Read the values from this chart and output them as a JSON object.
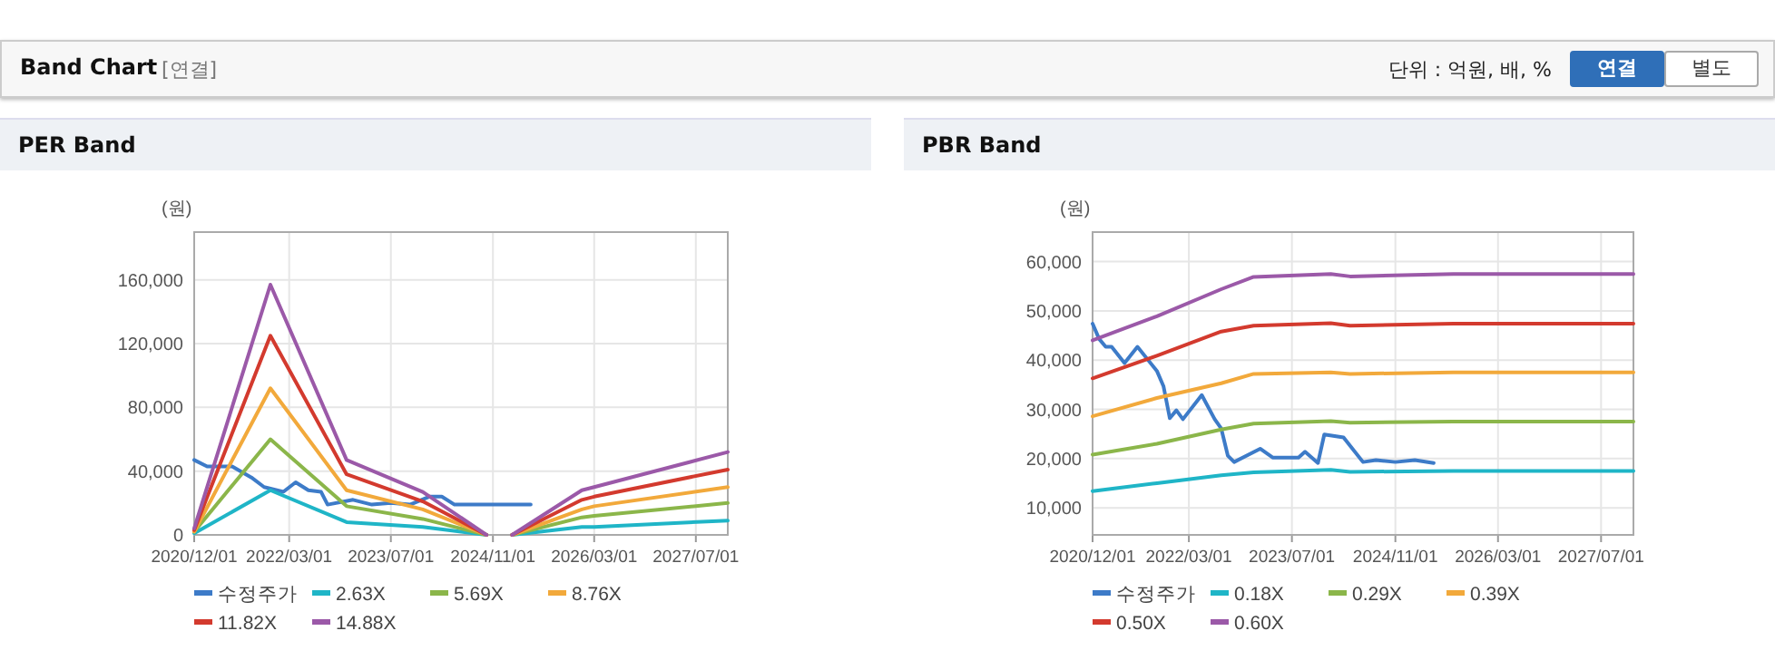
{
  "chart_data": [
    {
      "type": "other",
      "title": "Band Chart",
      "subtitle": "[연결]",
      "annotations": [
        "단위 : 억원, 배, %",
        "연결",
        "별도"
      ]
    },
    {
      "type": "line",
      "title": "PER Band",
      "ylabel": "(원)",
      "xlim": [
        "2020-12-01",
        "2027-12-01"
      ],
      "xticks": [
        {
          "value": "2020-12-01",
          "label": "2020/12/01"
        },
        {
          "value": "2022-03-01",
          "label": "2022/03/01"
        },
        {
          "value": "2023-07-01",
          "label": "2023/07/01"
        },
        {
          "value": "2024-11-01",
          "label": "2024/11/01"
        },
        {
          "value": "2026-03-01",
          "label": "2026/03/01"
        },
        {
          "value": "2027-07-01",
          "label": "2027/07/01"
        }
      ],
      "ylim": [
        0,
        190000
      ],
      "yticks": [
        0,
        {
          "value": 40000,
          "label": "40,000"
        },
        {
          "value": 80000,
          "label": "80,000"
        },
        {
          "value": 120000,
          "label": "120,000"
        },
        {
          "value": 160000,
          "label": "160,000"
        }
      ],
      "grid": true,
      "legend": "bottom",
      "series": [
        {
          "name": "수정주가",
          "color": "#3d7bc8",
          "x": [
            "2020-12",
            "2021-02",
            "2021-06",
            "2021-09",
            "2021-11",
            "2022-02",
            "2022-04",
            "2022-06",
            "2022-08",
            "2022-09",
            "2023-01",
            "2023-04",
            "2023-07",
            "2023-10",
            "2024-01",
            "2024-03",
            "2024-05",
            "2025-05"
          ],
          "values": [
            47000,
            43000,
            43000,
            36000,
            30000,
            27000,
            33000,
            28000,
            27000,
            19000,
            22000,
            19000,
            20000,
            19000,
            24000,
            24000,
            19000,
            19000
          ]
        },
        {
          "name": "2.63X",
          "color": "#1fb5c7",
          "x": [
            "2020-12",
            "2021-12",
            "2022-12",
            "2023-12",
            "2024-10",
            "2024-12",
            "2025-02",
            "2026-01",
            "2026-03",
            "2027-12"
          ],
          "values": [
            1000,
            28000,
            8000,
            5000,
            0,
            null,
            0,
            5000,
            5000,
            9000
          ]
        },
        {
          "name": "5.69X",
          "color": "#8bb64a",
          "x": [
            "2020-12",
            "2021-12",
            "2022-12",
            "2023-12",
            "2024-10",
            "2024-12",
            "2025-02",
            "2026-01",
            "2026-03",
            "2027-12"
          ],
          "values": [
            2000,
            60000,
            18000,
            10000,
            0,
            null,
            0,
            11000,
            12000,
            20000
          ]
        },
        {
          "name": "8.76X",
          "color": "#f2a93b",
          "x": [
            "2020-12",
            "2021-12",
            "2022-12",
            "2023-12",
            "2024-10",
            "2024-12",
            "2025-02",
            "2026-01",
            "2026-03",
            "2027-12"
          ],
          "values": [
            2000,
            92000,
            28000,
            16000,
            0,
            null,
            0,
            16000,
            18000,
            30000
          ]
        },
        {
          "name": "11.82X",
          "color": "#d33a2e",
          "x": [
            "2020-12",
            "2021-12",
            "2022-12",
            "2023-12",
            "2024-10",
            "2024-12",
            "2025-02",
            "2026-01",
            "2026-03",
            "2027-12"
          ],
          "values": [
            3000,
            125000,
            38000,
            21000,
            0,
            null,
            0,
            22000,
            24000,
            41000
          ]
        },
        {
          "name": "14.88X",
          "color": "#9b59a8",
          "x": [
            "2020-12",
            "2021-12",
            "2022-12",
            "2023-12",
            "2024-10",
            "2024-12",
            "2025-02",
            "2026-01",
            "2026-03",
            "2027-12"
          ],
          "values": [
            4000,
            157000,
            47000,
            27000,
            0,
            null,
            0,
            28000,
            30000,
            52000
          ]
        }
      ]
    },
    {
      "type": "line",
      "title": "PBR Band",
      "ylabel": "(원)",
      "xlim": [
        "2020-12-01",
        "2027-12-01"
      ],
      "xticks": [
        {
          "value": "2020-12-01",
          "label": "2020/12/01"
        },
        {
          "value": "2022-03-01",
          "label": "2022/03/01"
        },
        {
          "value": "2023-07-01",
          "label": "2023/07/01"
        },
        {
          "value": "2024-11-01",
          "label": "2024/11/01"
        },
        {
          "value": "2026-03-01",
          "label": "2026/03/01"
        },
        {
          "value": "2027-07-01",
          "label": "2027/07/01"
        }
      ],
      "ylim": [
        4500,
        66000
      ],
      "yticks": [
        {
          "value": 10000,
          "label": "10,000"
        },
        {
          "value": 20000,
          "label": "20,000"
        },
        {
          "value": 30000,
          "label": "30,000"
        },
        {
          "value": 40000,
          "label": "40,000"
        },
        {
          "value": 50000,
          "label": "50,000"
        },
        {
          "value": 60000,
          "label": "60,000"
        }
      ],
      "grid": true,
      "legend": "bottom",
      "series": [
        {
          "name": "수정주가",
          "color": "#3d7bc8",
          "x": [
            "2020-12",
            "2021-01",
            "2021-02",
            "2021-03",
            "2021-05",
            "2021-07",
            "2021-10",
            "2021-11",
            "2021-12",
            "2022-01",
            "2022-02",
            "2022-05",
            "2022-07",
            "2022-08",
            "2022-09",
            "2022-10",
            "2023-02",
            "2023-04",
            "2023-08",
            "2023-09",
            "2023-11",
            "2023-12",
            "2024-03",
            "2024-06",
            "2024-08",
            "2024-11",
            "2025-02",
            "2025-05"
          ],
          "values": [
            47400,
            44300,
            42700,
            42700,
            39400,
            42700,
            37800,
            34700,
            28200,
            29800,
            28000,
            32900,
            28000,
            26100,
            20600,
            19300,
            22000,
            20200,
            20200,
            21400,
            19100,
            24900,
            24300,
            19300,
            19700,
            19300,
            19700,
            19100
          ]
        },
        {
          "name": "0.18X",
          "color": "#1fb5c7",
          "x": [
            "2020-12",
            "2021-10",
            "2022-08",
            "2023-01",
            "2024-01",
            "2024-04",
            "2025-08",
            "2027-12"
          ],
          "values": [
            13400,
            15000,
            16600,
            17200,
            17700,
            17300,
            17500,
            17500
          ]
        },
        {
          "name": "0.29X",
          "color": "#8bb64a",
          "x": [
            "2020-12",
            "2021-10",
            "2022-08",
            "2023-01",
            "2024-01",
            "2024-04",
            "2025-08",
            "2027-12"
          ],
          "values": [
            20800,
            23000,
            25900,
            27100,
            27600,
            27300,
            27500,
            27500
          ]
        },
        {
          "name": "0.39X",
          "color": "#f2a93b",
          "x": [
            "2020-12",
            "2021-10",
            "2022-08",
            "2023-01",
            "2024-01",
            "2024-04",
            "2025-08",
            "2027-12"
          ],
          "values": [
            28600,
            32300,
            35300,
            37200,
            37500,
            37200,
            37500,
            37500
          ]
        },
        {
          "name": "0.50X",
          "color": "#d33a2e",
          "x": [
            "2020-12",
            "2021-10",
            "2022-08",
            "2023-01",
            "2024-01",
            "2024-04",
            "2025-08",
            "2027-12"
          ],
          "values": [
            36300,
            40900,
            45800,
            47000,
            47500,
            47000,
            47400,
            47400
          ]
        },
        {
          "name": "0.60X",
          "color": "#9b59a8",
          "x": [
            "2020-12",
            "2021-10",
            "2022-08",
            "2023-01",
            "2024-01",
            "2024-04",
            "2025-08",
            "2027-12"
          ],
          "values": [
            44000,
            48900,
            54400,
            56900,
            57500,
            57000,
            57500,
            57500
          ]
        }
      ]
    }
  ]
}
